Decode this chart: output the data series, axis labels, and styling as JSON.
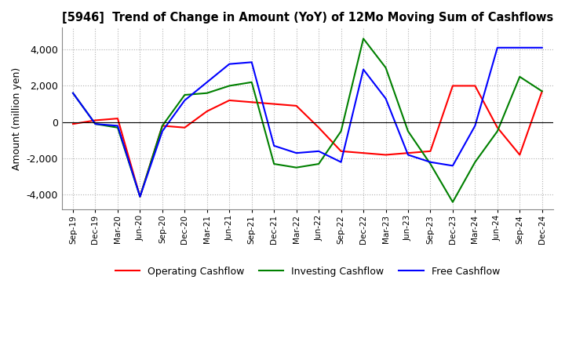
{
  "title": "[5946]  Trend of Change in Amount (YoY) of 12Mo Moving Sum of Cashflows",
  "ylabel": "Amount (million yen)",
  "ylim": [
    -4800,
    5200
  ],
  "yticks": [
    -4000,
    -2000,
    0,
    2000,
    4000
  ],
  "x_labels": [
    "Sep-19",
    "Dec-19",
    "Mar-20",
    "Jun-20",
    "Sep-20",
    "Dec-20",
    "Mar-21",
    "Jun-21",
    "Sep-21",
    "Dec-21",
    "Mar-22",
    "Jun-22",
    "Sep-22",
    "Dec-22",
    "Mar-23",
    "Jun-23",
    "Sep-23",
    "Dec-23",
    "Mar-24",
    "Jun-24",
    "Sep-24",
    "Dec-24"
  ],
  "operating": [
    -100,
    100,
    200,
    -4100,
    -200,
    -300,
    600,
    1200,
    1100,
    1000,
    900,
    -300,
    -1600,
    -1700,
    -1800,
    -1700,
    -1600,
    2000,
    2000,
    -300,
    -1800,
    1700
  ],
  "investing": [
    1600,
    -100,
    -300,
    -4100,
    -200,
    1500,
    1600,
    2000,
    2200,
    -2300,
    -2500,
    -2300,
    -500,
    4600,
    3000,
    -500,
    -2300,
    -4400,
    -2200,
    -500,
    2500,
    1700
  ],
  "free": [
    1600,
    -100,
    -200,
    -4100,
    -500,
    1200,
    2200,
    3200,
    3300,
    -1300,
    -1700,
    -1600,
    -2200,
    2900,
    1300,
    -1800,
    -2200,
    -2400,
    -200,
    4100,
    4100,
    4100
  ],
  "operating_color": "#ff0000",
  "investing_color": "#008000",
  "free_color": "#0000ff",
  "bg_color": "#ffffff",
  "grid_color": "#b0b0b0"
}
